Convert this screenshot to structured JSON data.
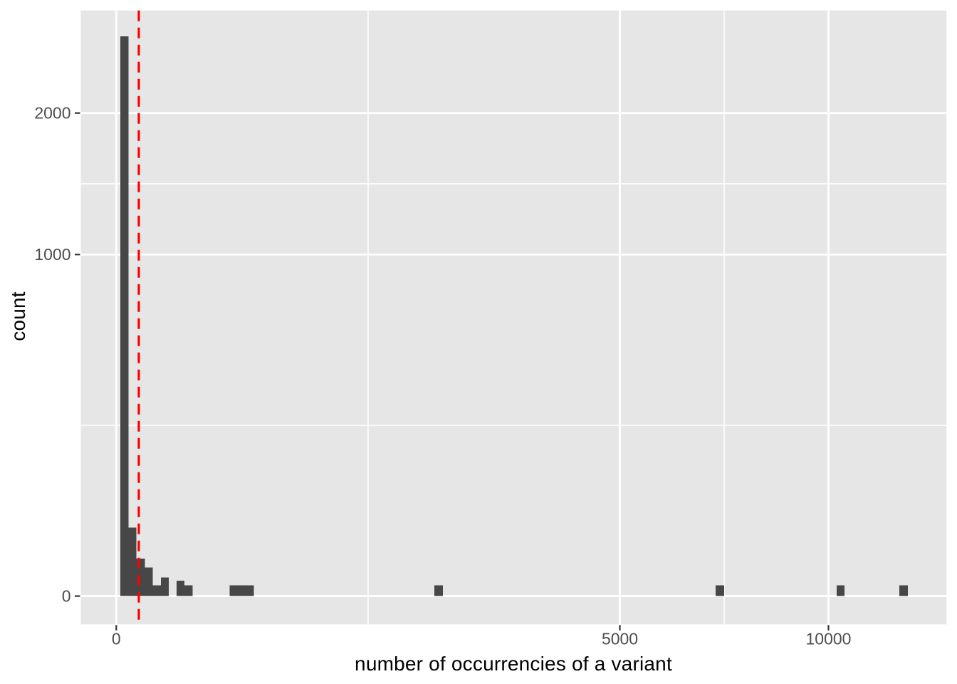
{
  "figure": {
    "x_axis_title": "number of occurrencies of a variant",
    "y_axis_title": "count"
  },
  "chart_data": {
    "type": "bar",
    "subtype": "histogram",
    "title": "",
    "xlabel": "number of occurrencies of a variant",
    "ylabel": "count",
    "x_scale": "sqrt",
    "y_scale": "sqrt",
    "grid": "on",
    "legend": "none",
    "x_breaks": [
      0,
      5000,
      10000
    ],
    "x_tick_labels": [
      "0",
      "5000",
      "10000"
    ],
    "x_minor_breaks": [
      1250,
      7285
    ],
    "y_breaks": [
      0,
      1000,
      2000
    ],
    "y_tick_labels": [
      "0",
      "1000",
      "2000"
    ],
    "y_minor_breaks": [
      250,
      1457
    ],
    "x_view_sqrt": [
      -4.98,
      116.58
    ],
    "y_view_sqrt": [
      -2.62,
      54.22
    ],
    "bars": [
      {
        "from": 0.3,
        "to": 3,
        "count": 2685
      },
      {
        "from": 3,
        "to": 8,
        "count": 40
      },
      {
        "from": 8,
        "to": 16,
        "count": 12
      },
      {
        "from": 16,
        "to": 26,
        "count": 7
      },
      {
        "from": 26,
        "to": 39,
        "count": 1
      },
      {
        "from": 39,
        "to": 54,
        "count": 3
      },
      {
        "from": 72,
        "to": 92,
        "count": 2
      },
      {
        "from": 92,
        "to": 115,
        "count": 1
      },
      {
        "from": 253,
        "to": 374,
        "count": 1
      },
      {
        "from": 1995,
        "to": 2104,
        "count": 1
      },
      {
        "from": 7085,
        "to": 7288,
        "count": 1
      },
      {
        "from": 10235,
        "to": 10459,
        "count": 1
      },
      {
        "from": 12093,
        "to": 12359,
        "count": 1
      }
    ],
    "vline": {
      "x": 10,
      "style": "dashed",
      "color": "#FF0000"
    },
    "colors": {
      "panel_background": "#E6E6E6",
      "gridline": "#FFFFFF",
      "bar_fill": "#474747",
      "tick_mark": "#333333",
      "tick_text": "#4D4D4D",
      "axis_title_text": "#000000",
      "vline": "#FF0000"
    }
  }
}
